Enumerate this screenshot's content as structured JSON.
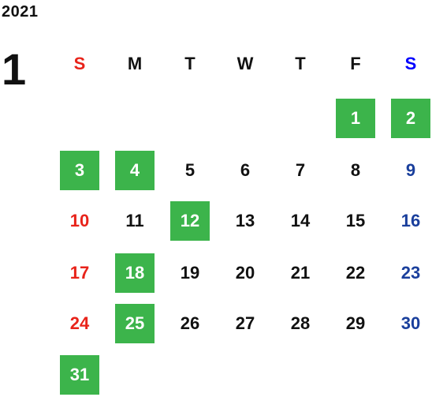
{
  "year": "2021",
  "month": "1",
  "colors": {
    "sunday": "#e8231a",
    "saturday": "#1a3f9c",
    "saturday_header": "#0000ff",
    "weekday": "#111111",
    "highlight": "#3cb44b"
  },
  "weekdays": [
    "S",
    "M",
    "T",
    "W",
    "T",
    "F",
    "S"
  ],
  "days": [
    {
      "label": "1",
      "highlighted": true
    },
    {
      "label": "2",
      "highlighted": true
    },
    {
      "label": "3",
      "highlighted": true
    },
    {
      "label": "4",
      "highlighted": true
    },
    {
      "label": "5",
      "highlighted": false
    },
    {
      "label": "6",
      "highlighted": false
    },
    {
      "label": "7",
      "highlighted": false
    },
    {
      "label": "8",
      "highlighted": false
    },
    {
      "label": "9",
      "highlighted": false
    },
    {
      "label": "10",
      "highlighted": false
    },
    {
      "label": "11",
      "highlighted": false
    },
    {
      "label": "12",
      "highlighted": true
    },
    {
      "label": "13",
      "highlighted": false
    },
    {
      "label": "14",
      "highlighted": false
    },
    {
      "label": "15",
      "highlighted": false
    },
    {
      "label": "16",
      "highlighted": false
    },
    {
      "label": "17",
      "highlighted": false
    },
    {
      "label": "18",
      "highlighted": true
    },
    {
      "label": "19",
      "highlighted": false
    },
    {
      "label": "20",
      "highlighted": false
    },
    {
      "label": "21",
      "highlighted": false
    },
    {
      "label": "22",
      "highlighted": false
    },
    {
      "label": "23",
      "highlighted": false
    },
    {
      "label": "24",
      "highlighted": false
    },
    {
      "label": "25",
      "highlighted": true
    },
    {
      "label": "26",
      "highlighted": false
    },
    {
      "label": "27",
      "highlighted": false
    },
    {
      "label": "28",
      "highlighted": false
    },
    {
      "label": "29",
      "highlighted": false
    },
    {
      "label": "30",
      "highlighted": false
    },
    {
      "label": "31",
      "highlighted": true
    }
  ]
}
